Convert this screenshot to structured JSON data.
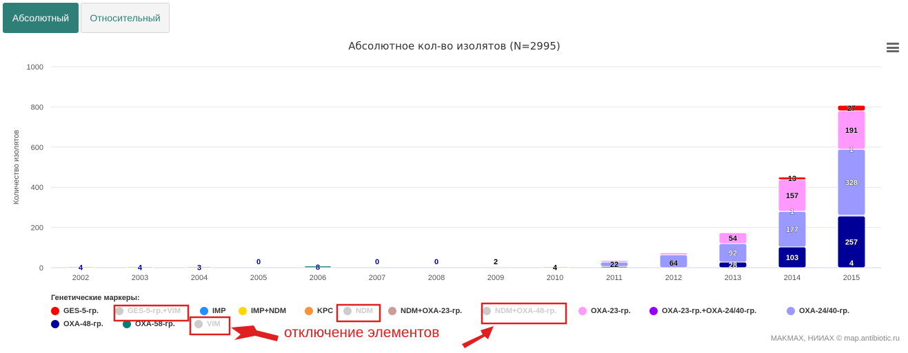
{
  "tabs": {
    "absolute_label": "Абсолютный",
    "relative_label": "Относительный"
  },
  "legend_title": "Генетические маркеры:",
  "credits": "MAKMAX, НИИАХ © map.antibiotic.ru",
  "annotation": "отключение элементов",
  "icons": {
    "menu": "hamburger-menu-icon",
    "arrow": "red-arrow-icon"
  },
  "legend": [
    {
      "name": "GES-5-гр.",
      "color": "#ff0000",
      "visible": true
    },
    {
      "name": "GES-5-гр.+VIM",
      "color": "#ff9999",
      "visible": false
    },
    {
      "name": "IMP",
      "color": "#1e90ff",
      "visible": true
    },
    {
      "name": "IMP+NDM",
      "color": "#ffd700",
      "visible": true
    },
    {
      "name": "KPC",
      "color": "#f7923a",
      "visible": true
    },
    {
      "name": "NDM",
      "color": "#ff8080",
      "visible": false
    },
    {
      "name": "NDM+OXA-23-гр.",
      "color": "#d09a96",
      "visible": true
    },
    {
      "name": "NDM+OXA-48-гр.",
      "color": "#ff8080",
      "visible": false
    },
    {
      "name": "OXA-23-гр.",
      "color": "#ff99ff",
      "visible": true
    },
    {
      "name": "OXA-23-гр.+OXA-24/40-гр.",
      "color": "#9900ff",
      "visible": true
    },
    {
      "name": "OXA-24/40-гр.",
      "color": "#9999ff",
      "visible": true
    },
    {
      "name": "OXA-48-гр.",
      "color": "#000099",
      "visible": true
    },
    {
      "name": "OXA-58-гр.",
      "color": "#0f7a72",
      "visible": true
    },
    {
      "name": "VIM",
      "color": "#ff8080",
      "visible": false
    }
  ],
  "chart_data": {
    "type": "bar",
    "stacked": true,
    "title": "Абсолютное кол-во изолятов (N=2995)",
    "xlabel": "",
    "ylabel": "Количество изолятов",
    "ylim": [
      0,
      1000
    ],
    "yticks": [
      0,
      200,
      400,
      600,
      800,
      1000
    ],
    "grid": true,
    "legend_position": "bottom",
    "categories": [
      "2002",
      "2003",
      "2004",
      "2005",
      "2006",
      "2007",
      "2008",
      "2009",
      "2010",
      "2011",
      "2012",
      "2013",
      "2014",
      "2015"
    ],
    "series": [
      {
        "name": "OXA-48-гр.",
        "color": "#000099",
        "values": [
          0,
          0,
          0,
          0,
          0,
          0,
          0,
          0,
          0,
          6,
          0,
          28,
          103,
          257
        ]
      },
      {
        "name": "OXA-58-гр.",
        "color": "#0f7a72",
        "values": [
          0,
          0,
          0,
          0,
          8,
          0,
          0,
          0,
          0,
          0,
          0,
          0,
          0,
          0
        ]
      },
      {
        "name": "IMP",
        "color": "#1e90ff",
        "values": [
          0,
          0,
          0,
          0,
          0,
          0,
          0,
          0,
          0,
          0,
          0,
          0,
          0,
          4
        ]
      },
      {
        "name": "OXA-24/40-гр.",
        "color": "#9999ff",
        "values": [
          4,
          4,
          3,
          0,
          0,
          0,
          0,
          0,
          4,
          22,
          64,
          92,
          177,
          328
        ]
      },
      {
        "name": "OXA-23-гр.+OXA-24/40-гр.",
        "color": "#9900ff",
        "values": [
          0,
          0,
          0,
          0,
          0,
          0,
          0,
          0,
          0,
          0,
          0,
          0,
          1,
          1
        ]
      },
      {
        "name": "OXA-23-гр.",
        "color": "#ff99ff",
        "values": [
          0,
          0,
          0,
          0,
          0,
          0,
          0,
          0,
          0,
          8,
          10,
          54,
          157,
          191
        ]
      },
      {
        "name": "GES-5-гр.",
        "color": "#ff0000",
        "values": [
          0,
          0,
          0,
          0,
          0,
          0,
          0,
          0,
          0,
          0,
          0,
          0,
          13,
          27
        ]
      }
    ],
    "data_labels": [
      {
        "category": "2002",
        "value": "4",
        "color": "#000099"
      },
      {
        "category": "2003",
        "value": "4",
        "color": "#000099"
      },
      {
        "category": "2004",
        "value": "3",
        "color": "#000099"
      },
      {
        "category": "2005",
        "value": "0",
        "color": "#000099"
      },
      {
        "category": "2006",
        "value": "8",
        "color": "#000099"
      },
      {
        "category": "2007",
        "value": "0",
        "color": "#000099"
      },
      {
        "category": "2008",
        "value": "0",
        "color": "#000099"
      },
      {
        "category": "2009",
        "value": "2",
        "color": "#000000"
      },
      {
        "category": "2010",
        "value": "4",
        "color": "#000000"
      },
      {
        "category": "2011",
        "value": "22",
        "color": "#000000"
      },
      {
        "category": "2012",
        "value": "64",
        "color": "#000000"
      },
      {
        "category": "2013",
        "value": "92",
        "color": "#ffffff"
      },
      {
        "category": "2013",
        "value": "54",
        "color": "#000000"
      },
      {
        "category": "2013",
        "value": "28",
        "color": "#ffffff"
      },
      {
        "category": "2014",
        "value": "103",
        "color": "#ffffff"
      },
      {
        "category": "2014",
        "value": "177",
        "color": "#ffffff"
      },
      {
        "category": "2014",
        "value": "1",
        "color": "#ffffff"
      },
      {
        "category": "2014",
        "value": "157",
        "color": "#000000"
      },
      {
        "category": "2014",
        "value": "13",
        "color": "#000000"
      },
      {
        "category": "2015",
        "value": "4",
        "color": "#ffffff"
      },
      {
        "category": "2015",
        "value": "257",
        "color": "#ffffff"
      },
      {
        "category": "2015",
        "value": "328",
        "color": "#ffffff"
      },
      {
        "category": "2015",
        "value": "1",
        "color": "#ffffff"
      },
      {
        "category": "2015",
        "value": "191",
        "color": "#000000"
      },
      {
        "category": "2015",
        "value": "27",
        "color": "#000000"
      }
    ]
  }
}
